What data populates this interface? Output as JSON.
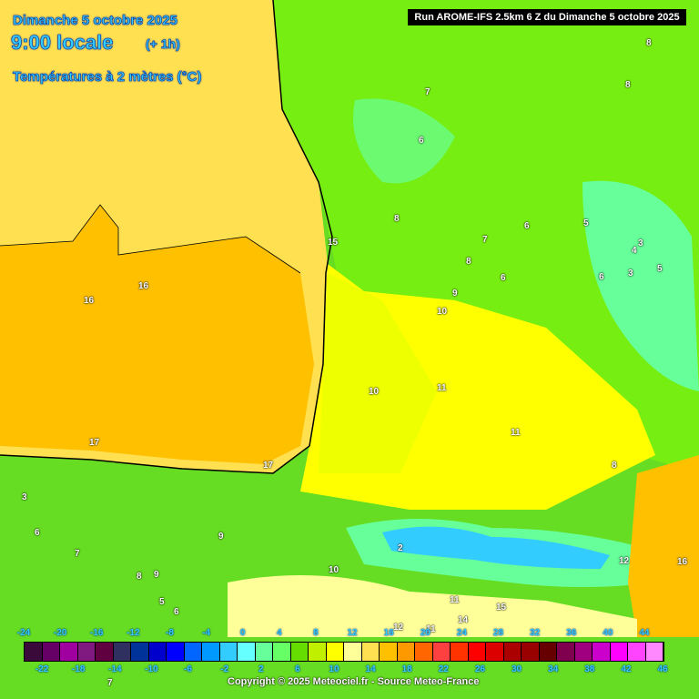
{
  "header": {
    "date": "Dimanche 5 octobre 2025",
    "time": "9:00 locale",
    "lead": "(+ 1h)",
    "parameter": "Températures à 2 mètres (°C)",
    "run": "Run AROME-IFS 2.5km 6 Z du Dimanche 5 octobre 2025"
  },
  "legend": {
    "top_labels": [
      "-24",
      "-20",
      "-16",
      "-12",
      "-8",
      "-4",
      "0",
      "4",
      "8",
      "12",
      "16",
      "20",
      "24",
      "28",
      "32",
      "36",
      "40",
      "44"
    ],
    "bottom_labels": [
      "-22",
      "-18",
      "-14",
      "-10",
      "-6",
      "-2",
      "2",
      "6",
      "10",
      "14",
      "18",
      "22",
      "26",
      "30",
      "34",
      "38",
      "42",
      "46"
    ],
    "colors": [
      "#3a0a3a",
      "#660066",
      "#a000a0",
      "#801a80",
      "#600040",
      "#303060",
      "#003399",
      "#0000cc",
      "#0000ff",
      "#0066ff",
      "#0099ff",
      "#33ccff",
      "#66ffff",
      "#66ff99",
      "#66ff66",
      "#66dd00",
      "#c0f000",
      "#ffff00",
      "#ffff99",
      "#ffe050",
      "#ffc000",
      "#ff9900",
      "#ff6600",
      "#ff4040",
      "#ff3300",
      "#ff0000",
      "#dd0000",
      "#aa0000",
      "#990000",
      "#660000",
      "#800050",
      "#a00080",
      "#cc00cc",
      "#ff00ff",
      "#ff44ff",
      "#ff88ff"
    ]
  },
  "map": {
    "labels": [
      "8",
      "7",
      "8",
      "6",
      "8",
      "6",
      "5",
      "6",
      "4",
      "3",
      "5",
      "3",
      "6",
      "15",
      "8",
      "7",
      "16",
      "16",
      "9",
      "10",
      "10",
      "11",
      "11",
      "17",
      "17",
      "8",
      "3",
      "6",
      "7",
      "9",
      "8",
      "9",
      "10",
      "5",
      "6",
      "7",
      "2",
      "12",
      "11",
      "14",
      "15",
      "16",
      "12",
      "11"
    ]
  },
  "copyright": "Copyright © 2025 Meteociel.fr - Source Meteo-France"
}
